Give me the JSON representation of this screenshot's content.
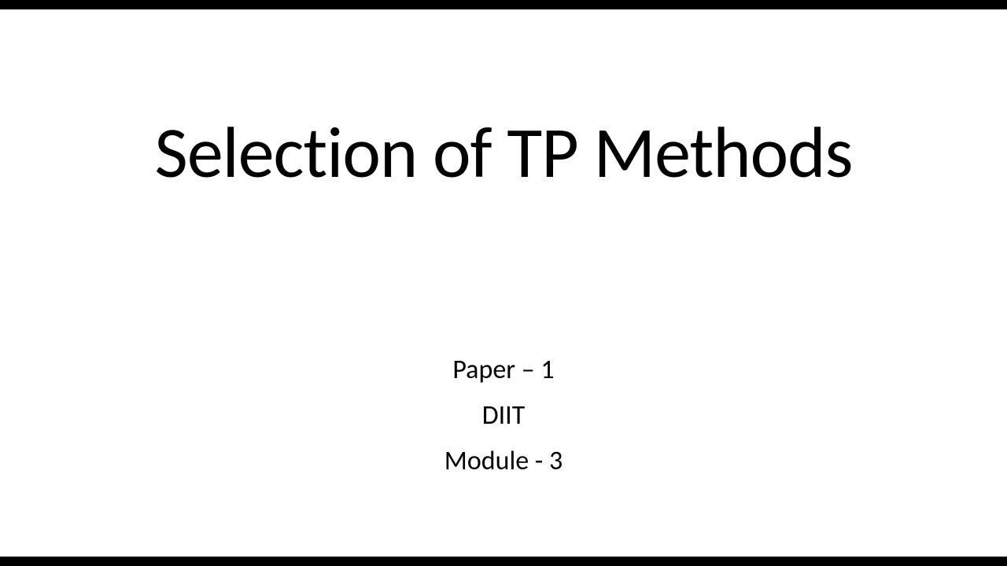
{
  "slide": {
    "title": "Selection of TP Methods",
    "subtitle": {
      "line1": "Paper – 1",
      "line2": "DIIT",
      "line3": "Module - 3"
    },
    "colors": {
      "background": "#ffffff",
      "letterbox": "#000000",
      "text": "#000000"
    },
    "typography": {
      "title_fontsize": 92,
      "title_weight": 300,
      "subtitle_fontsize": 34,
      "subtitle_weight": 400,
      "font_family": "Calibri"
    }
  }
}
